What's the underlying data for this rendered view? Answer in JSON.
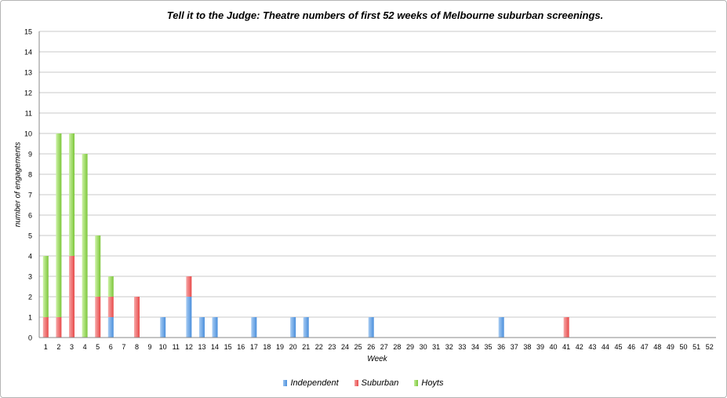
{
  "chart_data": {
    "type": "bar",
    "stacked": true,
    "title": "Tell it to the Judge: Theatre numbers of first 52 weeks of Melbourne suburban screenings.",
    "xlabel": "Week",
    "ylabel": "number of engagements",
    "ylim": [
      0,
      15
    ],
    "yticks": [
      0,
      1,
      2,
      3,
      4,
      5,
      6,
      7,
      8,
      9,
      10,
      11,
      12,
      13,
      14,
      15
    ],
    "grid": true,
    "legend_position": "bottom",
    "categories": [
      "1",
      "2",
      "3",
      "4",
      "5",
      "6",
      "7",
      "8",
      "9",
      "10",
      "11",
      "12",
      "13",
      "14",
      "15",
      "16",
      "17",
      "18",
      "19",
      "20",
      "21",
      "22",
      "23",
      "24",
      "25",
      "26",
      "27",
      "28",
      "29",
      "30",
      "31",
      "32",
      "33",
      "34",
      "35",
      "36",
      "37",
      "38",
      "39",
      "40",
      "41",
      "42",
      "43",
      "44",
      "45",
      "46",
      "47",
      "48",
      "49",
      "50",
      "51",
      "52"
    ],
    "series": [
      {
        "name": "Independent",
        "color": "#4a8fdc",
        "values": [
          0,
          0,
          0,
          0,
          0,
          1,
          0,
          0,
          0,
          1,
          0,
          2,
          1,
          1,
          0,
          0,
          1,
          0,
          0,
          1,
          1,
          0,
          0,
          0,
          0,
          1,
          0,
          0,
          0,
          0,
          0,
          0,
          0,
          0,
          0,
          1,
          0,
          0,
          0,
          0,
          0,
          0,
          0,
          0,
          0,
          0,
          0,
          0,
          0,
          0,
          0,
          0
        ]
      },
      {
        "name": "Suburban",
        "color": "#e84a4a",
        "values": [
          1,
          1,
          4,
          0,
          2,
          1,
          0,
          2,
          0,
          0,
          0,
          1,
          0,
          0,
          0,
          0,
          0,
          0,
          0,
          0,
          0,
          0,
          0,
          0,
          0,
          0,
          0,
          0,
          0,
          0,
          0,
          0,
          0,
          0,
          0,
          0,
          0,
          0,
          0,
          0,
          1,
          0,
          0,
          0,
          0,
          0,
          0,
          0,
          0,
          0,
          0,
          0
        ]
      },
      {
        "name": "Hoyts",
        "color": "#7cc63a",
        "values": [
          3,
          9,
          6,
          9,
          3,
          1,
          0,
          0,
          0,
          0,
          0,
          0,
          0,
          0,
          0,
          0,
          0,
          0,
          0,
          0,
          0,
          0,
          0,
          0,
          0,
          0,
          0,
          0,
          0,
          0,
          0,
          0,
          0,
          0,
          0,
          0,
          0,
          0,
          0,
          0,
          0,
          0,
          0,
          0,
          0,
          0,
          0,
          0,
          0,
          0,
          0,
          0
        ]
      }
    ]
  }
}
